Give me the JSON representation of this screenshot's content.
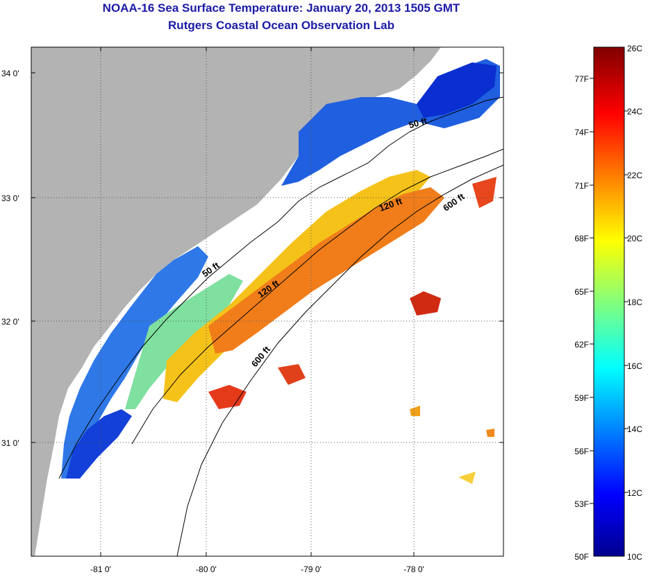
{
  "title": {
    "line1": "NOAA-16 Sea Surface Temperature:  January 20, 2013 1505 GMT",
    "line2": "Rutgers Coastal Ocean Observation Lab"
  },
  "map": {
    "lat_labels": [
      "34 0'",
      "33 0'",
      "32 0'",
      "31 0'"
    ],
    "lon_labels": [
      "-81 0'",
      "-80 0'",
      "-79 0'",
      "-78 0'"
    ],
    "contour_labels": [
      "50 ft",
      "120 ft",
      "600 ft",
      "50 ft",
      "120 ft",
      "600 ft"
    ]
  },
  "colorbar": {
    "fahrenheit": [
      "77F",
      "74F",
      "71F",
      "68F",
      "65F",
      "62F",
      "59F",
      "56F",
      "53F",
      "50F"
    ],
    "celsius": [
      "26C",
      "24C",
      "22C",
      "20C",
      "18C",
      "16C",
      "14C",
      "12C",
      "10C"
    ]
  },
  "colors": {
    "land": "#b3b3b3",
    "title": "#1a1aa6"
  }
}
